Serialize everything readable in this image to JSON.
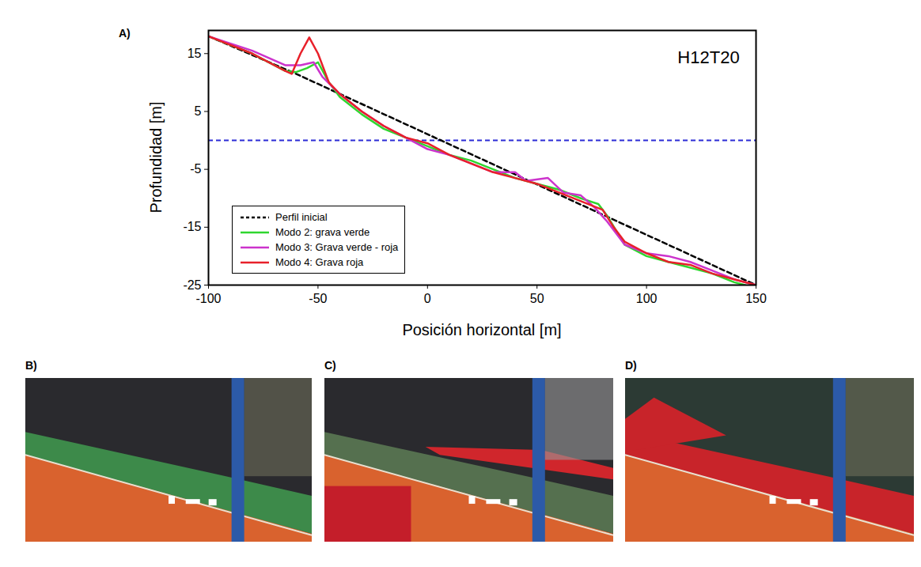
{
  "chart_data": {
    "type": "line",
    "panel": "A)",
    "title": "H12T20",
    "x_label": "Posición horizontal [m]",
    "y_label": "Profundidad [m]",
    "xlim": [
      -100,
      150
    ],
    "xticks": [
      -100,
      -50,
      0,
      50,
      100,
      150
    ],
    "ylim": [
      -25,
      19
    ],
    "yticks": [
      -25,
      -15,
      -5,
      5,
      15
    ],
    "grid": false,
    "legend": "lower left",
    "reference_line": {
      "y": 0,
      "color": "#2b2bd6",
      "line_style": "dashed"
    },
    "series": [
      {
        "name": "Perfil inicial",
        "color": "#000000",
        "line_style": "dashed",
        "x": [
          -100,
          -60,
          150
        ],
        "values": [
          18,
          11.5,
          -25
        ]
      },
      {
        "name": "Modo 2: grava verde",
        "color": "#2fd62f",
        "line_style": "solid",
        "x": [
          -100,
          -80,
          -65,
          -60,
          -55,
          -50,
          -45,
          -40,
          -30,
          -20,
          -10,
          0,
          10,
          20,
          30,
          40,
          50,
          60,
          70,
          78,
          82,
          90,
          100,
          110,
          120,
          130,
          140,
          145
        ],
        "values": [
          18,
          15,
          12,
          11.8,
          12.5,
          13.5,
          10,
          7.5,
          4.5,
          2,
          0.5,
          -1,
          -2.5,
          -3.5,
          -5,
          -6.5,
          -7.5,
          -8.5,
          -10,
          -11,
          -13,
          -18,
          -20,
          -21,
          -22,
          -23,
          -24.5,
          -25
        ]
      },
      {
        "name": "Modo 3: Grava verde - roja",
        "color": "#cc33cc",
        "line_style": "solid",
        "x": [
          -100,
          -80,
          -65,
          -58,
          -52,
          -48,
          -40,
          -30,
          -20,
          -10,
          0,
          10,
          20,
          30,
          40,
          45,
          55,
          62,
          70,
          76,
          82,
          90,
          100,
          110,
          120,
          130,
          140,
          150
        ],
        "values": [
          18,
          15.5,
          13,
          13,
          13.5,
          11,
          8,
          5,
          2.5,
          0.5,
          -1.5,
          -2.5,
          -4,
          -5.5,
          -5.5,
          -7,
          -6.5,
          -9,
          -9.5,
          -11.5,
          -14,
          -18,
          -19.5,
          -20,
          -21,
          -22.5,
          -24,
          -25
        ]
      },
      {
        "name": "Modo 4: Grava roja",
        "color": "#e8202a",
        "line_style": "solid",
        "x": [
          -100,
          -80,
          -65,
          -62,
          -58,
          -54,
          -50,
          -45,
          -40,
          -30,
          -20,
          -10,
          0,
          10,
          20,
          30,
          40,
          50,
          60,
          70,
          80,
          85,
          90,
          100,
          110,
          120,
          130,
          140,
          150
        ],
        "values": [
          18,
          15,
          12,
          11.5,
          15,
          17.8,
          15,
          10,
          8,
          5,
          2.5,
          0.5,
          -0.5,
          -2.5,
          -4,
          -5.5,
          -6.5,
          -7.5,
          -9,
          -10.5,
          -12,
          -15,
          -17.5,
          -19.5,
          -21,
          -21.5,
          -23,
          -24,
          -25
        ]
      }
    ]
  },
  "panels": [
    {
      "label": "B)"
    },
    {
      "label": "C)"
    },
    {
      "label": "D)"
    }
  ]
}
